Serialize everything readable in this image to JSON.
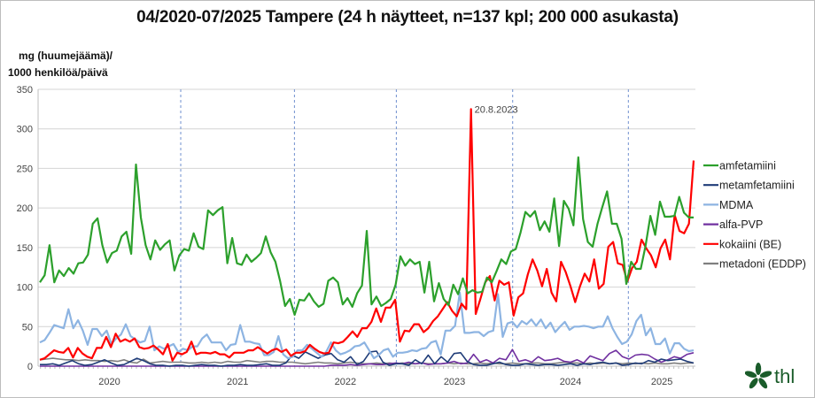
{
  "chart_data": {
    "type": "line",
    "title": "04/2020-07/2025 Tampere (24 h näytteet, n=137 kpl; 200 000 asukasta)",
    "ylabel_line1": "mg (huumejäämä)/",
    "ylabel_line2": "1000 henkilöä/päivä",
    "xlabel": "",
    "ylim": [
      0,
      350
    ],
    "yticks": [
      0,
      50,
      100,
      150,
      200,
      250,
      300,
      350
    ],
    "x_tick_labels": [
      "2020",
      "2021",
      "2022",
      "2023",
      "2024",
      "2025"
    ],
    "grid": true,
    "legend_position": "right",
    "annotation": "20.8.2023",
    "series": [
      {
        "name": "amfetamiini",
        "color": "#2ca02c",
        "values": [
          106,
          115,
          153,
          106,
          121,
          114,
          124,
          117,
          130,
          131,
          141,
          180,
          187,
          153,
          131,
          143,
          146,
          164,
          170,
          142,
          255,
          188,
          153,
          135,
          159,
          147,
          154,
          159,
          121,
          140,
          148,
          146,
          168,
          151,
          148,
          197,
          191,
          197,
          201,
          130,
          162,
          130,
          128,
          141,
          132,
          137,
          143,
          164,
          144,
          132,
          107,
          76,
          85,
          65,
          84,
          83,
          92,
          82,
          75,
          79,
          108,
          112,
          106,
          78,
          86,
          75,
          92,
          102,
          171,
          78,
          88,
          76,
          80,
          85,
          103,
          139,
          127,
          135,
          129,
          132,
          93,
          132,
          82,
          105,
          85,
          77,
          103,
          91,
          111,
          92,
          96,
          93,
          94,
          112,
          106,
          120,
          135,
          129,
          145,
          148,
          169,
          195,
          189,
          196,
          172,
          183,
          170,
          212,
          152,
          209,
          199,
          178,
          264,
          186,
          157,
          151,
          180,
          201,
          221,
          180,
          180,
          161,
          104,
          132,
          123,
          123,
          152,
          190,
          166,
          208,
          189,
          189,
          190,
          214,
          194,
          188,
          188
        ]
      },
      {
        "name": "metamfetamiini",
        "color": "#1f3c78",
        "values": [
          2,
          2,
          3,
          1,
          4,
          7,
          3,
          1,
          2,
          5,
          8,
          4,
          1,
          2,
          6,
          10,
          7,
          3,
          1,
          1,
          0,
          1,
          1,
          0,
          1,
          2,
          1,
          1,
          0,
          1,
          1,
          2,
          1,
          1,
          2,
          3,
          1,
          1,
          4,
          14,
          10,
          18,
          14,
          10,
          14,
          16,
          8,
          5,
          12,
          2,
          6,
          18,
          19,
          5,
          1,
          3,
          3,
          1,
          8,
          3,
          14,
          3,
          12,
          5,
          16,
          17,
          6,
          2,
          1,
          1,
          3,
          5,
          2,
          1,
          1,
          3,
          2,
          1,
          2,
          2,
          1,
          2,
          3,
          1,
          3,
          2,
          4,
          5,
          3,
          4,
          1,
          2,
          4,
          3,
          7,
          5,
          9,
          7,
          8,
          9,
          6,
          4
        ]
      },
      {
        "name": "MDMA",
        "color": "#8db4e2",
        "values": [
          30,
          33,
          42,
          52,
          50,
          48,
          72,
          48,
          58,
          45,
          27,
          47,
          47,
          38,
          45,
          28,
          35,
          40,
          53,
          38,
          34,
          30,
          32,
          50,
          20,
          25,
          22,
          25,
          28,
          18,
          22,
          20,
          25,
          25,
          35,
          40,
          30,
          30,
          30,
          20,
          27,
          28,
          52,
          31,
          31,
          29,
          28,
          14,
          14,
          18,
          38,
          15,
          10,
          12,
          20,
          20,
          27,
          22,
          17,
          12,
          18,
          30,
          20,
          15,
          17,
          20,
          25,
          26,
          30,
          20,
          10,
          14,
          20,
          22,
          12,
          17,
          17,
          18,
          20,
          19,
          22,
          23,
          30,
          32,
          15,
          45,
          45,
          51,
          93,
          42,
          42,
          43,
          43,
          38,
          43,
          45,
          91,
          37,
          54,
          56,
          49,
          57,
          53,
          59,
          51,
          59,
          48,
          55,
          43,
          50,
          56,
          46,
          50,
          50,
          51,
          50,
          48,
          50,
          50,
          63,
          48,
          37,
          28,
          31,
          40,
          57,
          65,
          39,
          48,
          28,
          28,
          35,
          16,
          29,
          29,
          22,
          19,
          20
        ]
      },
      {
        "name": "alfa-PVP",
        "color": "#7030a0",
        "values": [
          0,
          0,
          0,
          0,
          0,
          0,
          0,
          0,
          0,
          0,
          0,
          0,
          0,
          0,
          0,
          0,
          0,
          0,
          0,
          0,
          0,
          0,
          0,
          0,
          0,
          0,
          0,
          0,
          0,
          0,
          0,
          0,
          0,
          0,
          0,
          0,
          0,
          0,
          0,
          0,
          0,
          0,
          0,
          0,
          0,
          1,
          1,
          1,
          2,
          1,
          2,
          3,
          2,
          2,
          3,
          4,
          3,
          5,
          3,
          4,
          2,
          3,
          3,
          4,
          6,
          3,
          4,
          15,
          5,
          8,
          4,
          10,
          8,
          21,
          6,
          8,
          5,
          12,
          7,
          8,
          10,
          6,
          5,
          8,
          4,
          13,
          10,
          7,
          16,
          20,
          12,
          9,
          14,
          15,
          14,
          9,
          5,
          8,
          12,
          10,
          15,
          17
        ]
      },
      {
        "name": "kokaiini (BE)",
        "color": "#ff0000",
        "values": [
          8,
          10,
          15,
          20,
          18,
          17,
          23,
          11,
          23,
          16,
          12,
          10,
          23,
          23,
          37,
          24,
          41,
          31,
          34,
          31,
          35,
          24,
          22,
          23,
          26,
          21,
          15,
          28,
          7,
          17,
          15,
          18,
          31,
          15,
          17,
          17,
          16,
          18,
          15,
          15,
          11,
          17,
          17,
          17,
          20,
          20,
          24,
          20,
          16,
          20,
          22,
          18,
          21,
          13,
          17,
          17,
          19,
          27,
          22,
          18,
          16,
          17,
          30,
          29,
          31,
          37,
          44,
          37,
          48,
          48,
          56,
          73,
          56,
          74,
          74,
          84,
          31,
          45,
          44,
          53,
          53,
          43,
          48,
          57,
          63,
          72,
          81,
          70,
          63,
          79,
          72,
          325,
          66,
          85,
          106,
          114,
          83,
          108,
          103,
          106,
          64,
          87,
          92,
          116,
          135,
          121,
          101,
          123,
          93,
          82,
          132,
          119,
          101,
          81,
          101,
          117,
          107,
          135,
          98,
          104,
          151,
          157,
          130,
          128,
          107,
          124,
          132,
          160,
          149,
          140,
          125,
          149,
          160,
          135,
          191,
          171,
          168,
          180,
          260
        ]
      },
      {
        "name": "metadoni (EDDP)",
        "color": "#7f7f7f",
        "values": [
          8,
          9,
          10,
          9,
          8,
          8,
          7,
          8,
          7,
          7,
          6,
          7,
          6,
          8,
          5,
          4,
          9,
          4,
          5,
          6,
          5,
          5,
          5,
          4,
          4,
          5,
          4,
          5,
          4,
          6,
          5,
          5,
          7,
          6,
          5,
          6,
          6,
          5,
          5,
          5,
          4,
          3,
          4,
          5,
          4,
          4,
          3,
          4,
          5,
          4,
          3,
          3,
          4,
          3,
          4,
          3,
          4,
          3,
          3,
          4,
          3,
          3,
          3,
          4,
          3,
          4,
          3,
          3,
          4,
          3,
          4,
          3,
          3,
          4,
          3,
          3,
          4,
          4,
          3,
          3,
          4,
          5,
          4,
          4,
          3,
          4,
          3,
          4,
          3,
          4,
          3,
          4,
          3,
          4,
          3,
          4,
          3,
          3,
          4,
          3,
          4,
          4
        ]
      }
    ]
  },
  "logo": {
    "text": "thl"
  }
}
